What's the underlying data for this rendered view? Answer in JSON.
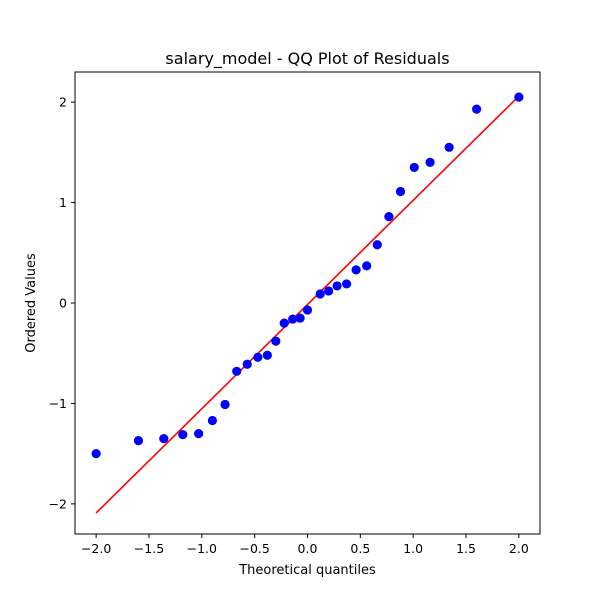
{
  "chart_data": {
    "type": "scatter",
    "title": "salary_model - QQ Plot of Residuals",
    "xlabel": "Theoretical quantiles",
    "ylabel": "Ordered Values",
    "xlim": [
      -2.2,
      2.2
    ],
    "ylim": [
      -2.3,
      2.3
    ],
    "x_ticks": [
      -2.0,
      -1.5,
      -1.0,
      -0.5,
      0.0,
      0.5,
      1.0,
      1.5,
      2.0
    ],
    "x_tick_labels": [
      "−2.0",
      "−1.5",
      "−1.0",
      "−0.5",
      "0.0",
      "0.5",
      "1.0",
      "1.5",
      "2.0"
    ],
    "y_ticks": [
      -2,
      -1,
      0,
      1,
      2
    ],
    "y_tick_labels": [
      "−2",
      "−1",
      "0",
      "1",
      "2"
    ],
    "grid": false,
    "points": {
      "color": "#0000ff",
      "x": [
        -2.0,
        -1.6,
        -1.36,
        -1.18,
        -1.03,
        -0.9,
        -0.78,
        -0.67,
        -0.57,
        -0.47,
        -0.38,
        -0.3,
        -0.22,
        -0.14,
        -0.07,
        0.0,
        0.12,
        0.2,
        0.28,
        0.37,
        0.46,
        0.56,
        0.66,
        0.77,
        0.88,
        1.01,
        1.16,
        1.34,
        1.6,
        2.0
      ],
      "y": [
        -1.5,
        -1.37,
        -1.35,
        -1.31,
        -1.3,
        -1.17,
        -1.01,
        -0.68,
        -0.61,
        -0.54,
        -0.52,
        -0.38,
        -0.2,
        -0.16,
        -0.15,
        -0.07,
        0.09,
        0.12,
        0.17,
        0.19,
        0.33,
        0.37,
        0.58,
        0.86,
        1.11,
        1.35,
        1.4,
        1.55,
        1.93,
        2.05
      ]
    },
    "fit_line": {
      "color": "#ff0000",
      "x": [
        -2.0,
        2.0
      ],
      "y": [
        -2.09,
        2.06
      ]
    }
  }
}
